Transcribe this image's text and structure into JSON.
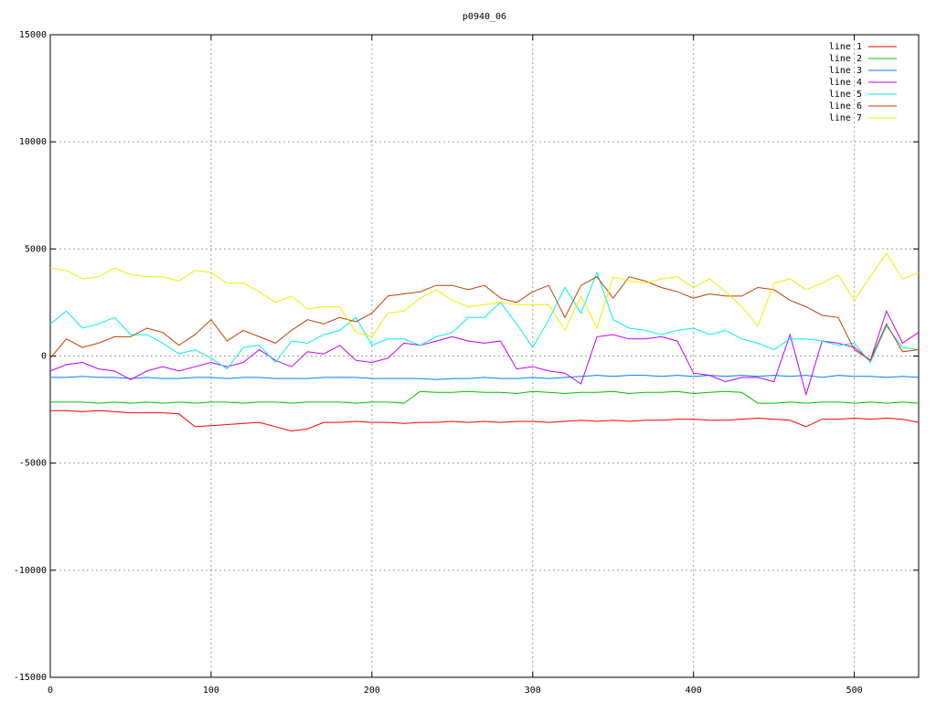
{
  "chart_data": {
    "type": "line",
    "title": "p0940_06",
    "x": [
      0,
      10,
      20,
      30,
      40,
      50,
      60,
      70,
      80,
      90,
      100,
      110,
      120,
      130,
      140,
      150,
      160,
      170,
      180,
      190,
      200,
      210,
      220,
      230,
      240,
      250,
      260,
      270,
      280,
      290,
      300,
      310,
      320,
      330,
      340,
      350,
      360,
      370,
      380,
      390,
      400,
      410,
      420,
      430,
      440,
      450,
      460,
      470,
      480,
      490,
      500,
      510,
      520,
      530,
      540
    ],
    "series": [
      {
        "name": "line 1",
        "color": "#ff0000",
        "values": [
          -2550,
          -2550,
          -2600,
          -2550,
          -2600,
          -2650,
          -2650,
          -2650,
          -2700,
          -3300,
          -3250,
          -3200,
          -3150,
          -3100,
          -3300,
          -3500,
          -3400,
          -3100,
          -3100,
          -3050,
          -3100,
          -3100,
          -3150,
          -3100,
          -3100,
          -3050,
          -3100,
          -3050,
          -3100,
          -3050,
          -3050,
          -3100,
          -3050,
          -3000,
          -3050,
          -3000,
          -3050,
          -3000,
          -3000,
          -2950,
          -2950,
          -3000,
          -3000,
          -2950,
          -2900,
          -2950,
          -3000,
          -3300,
          -2950,
          -2950,
          -2900,
          -2950,
          -2900,
          -2950,
          -3100
        ]
      },
      {
        "name": "line 2",
        "color": "#00c000",
        "values": [
          -2150,
          -2150,
          -2150,
          -2200,
          -2150,
          -2200,
          -2150,
          -2200,
          -2150,
          -2200,
          -2150,
          -2150,
          -2200,
          -2150,
          -2150,
          -2200,
          -2150,
          -2150,
          -2150,
          -2200,
          -2150,
          -2150,
          -2200,
          -1650,
          -1700,
          -1700,
          -1650,
          -1700,
          -1700,
          -1750,
          -1650,
          -1700,
          -1750,
          -1700,
          -1700,
          -1650,
          -1750,
          -1700,
          -1700,
          -1650,
          -1750,
          -1700,
          -1650,
          -1700,
          -2200,
          -2200,
          -2150,
          -2200,
          -2150,
          -2150,
          -2200,
          -2150,
          -2200,
          -2150,
          -2200
        ]
      },
      {
        "name": "line 3",
        "color": "#0080ff",
        "values": [
          -1000,
          -1000,
          -950,
          -1000,
          -1000,
          -1050,
          -1000,
          -1050,
          -1050,
          -1000,
          -1000,
          -1050,
          -1000,
          -1000,
          -1050,
          -1050,
          -1050,
          -1000,
          -1000,
          -1000,
          -1050,
          -1050,
          -1050,
          -1050,
          -1100,
          -1050,
          -1050,
          -1000,
          -1050,
          -1050,
          -1000,
          -1050,
          -1000,
          -950,
          -900,
          -950,
          -900,
          -900,
          -950,
          -900,
          -950,
          -900,
          -950,
          -900,
          -950,
          -900,
          -950,
          -900,
          -1000,
          -900,
          -950,
          -950,
          -1000,
          -950,
          -1000
        ]
      },
      {
        "name": "line 4",
        "color": "#c000ff",
        "values": [
          -700,
          -400,
          -300,
          -600,
          -700,
          -1100,
          -700,
          -500,
          -700,
          -500,
          -300,
          -500,
          -300,
          300,
          -200,
          -500,
          200,
          100,
          500,
          -200,
          -300,
          -100,
          600,
          500,
          700,
          900,
          700,
          600,
          700,
          -600,
          -500,
          -700,
          -800,
          -1300,
          900,
          1000,
          800,
          800,
          900,
          700,
          -800,
          -900,
          -1200,
          -1000,
          -1000,
          -1200,
          1000,
          -1800,
          700,
          600,
          400,
          -200,
          2100,
          600,
          1100
        ]
      },
      {
        "name": "line 5",
        "color": "#00eeee",
        "values": [
          1500,
          2100,
          1300,
          1500,
          1800,
          1000,
          1000,
          600,
          100,
          300,
          -100,
          -600,
          400,
          500,
          -300,
          700,
          600,
          1000,
          1200,
          1800,
          500,
          800,
          800,
          500,
          900,
          1100,
          1800,
          1800,
          2500,
          1500,
          400,
          1700,
          3200,
          2000,
          3900,
          1700,
          1300,
          1200,
          1000,
          1200,
          1300,
          1000,
          1200,
          800,
          600,
          300,
          800,
          800,
          700,
          500,
          600,
          -300,
          1400,
          400,
          300
        ]
      },
      {
        "name": "line 6",
        "color": "#c04000",
        "values": [
          -100,
          800,
          400,
          600,
          900,
          900,
          1300,
          1100,
          500,
          1000,
          1700,
          700,
          1200,
          900,
          600,
          1200,
          1700,
          1500,
          1800,
          1600,
          2000,
          2800,
          2900,
          3000,
          3300,
          3300,
          3100,
          3300,
          2700,
          2500,
          3000,
          3300,
          1800,
          3300,
          3700,
          2700,
          3700,
          3500,
          3200,
          3000,
          2700,
          2900,
          2800,
          2800,
          3200,
          3100,
          2600,
          2300,
          1900,
          1800,
          300,
          -200,
          1500,
          200,
          300
        ]
      },
      {
        "name": "line 7",
        "color": "#eeee00",
        "values": [
          4100,
          4000,
          3600,
          3700,
          4100,
          3800,
          3700,
          3700,
          3500,
          4000,
          3900,
          3400,
          3400,
          3000,
          2500,
          2800,
          2200,
          2300,
          2300,
          1100,
          900,
          2000,
          2100,
          2700,
          3100,
          2600,
          2300,
          2400,
          2500,
          2400,
          2400,
          2400,
          1200,
          2800,
          1300,
          3700,
          3500,
          3400,
          3600,
          3700,
          3200,
          3600,
          3000,
          2300,
          1400,
          3400,
          3600,
          3100,
          3400,
          3800,
          2600,
          3700,
          4800,
          3600,
          3900
        ]
      }
    ],
    "xlim": [
      0,
      540
    ],
    "ylim": [
      -15000,
      15000
    ],
    "xticks": [
      0,
      100,
      200,
      300,
      400,
      500
    ],
    "yticks": [
      -15000,
      -10000,
      -5000,
      0,
      5000,
      10000,
      15000
    ],
    "grid": true,
    "legend": "top-right"
  }
}
